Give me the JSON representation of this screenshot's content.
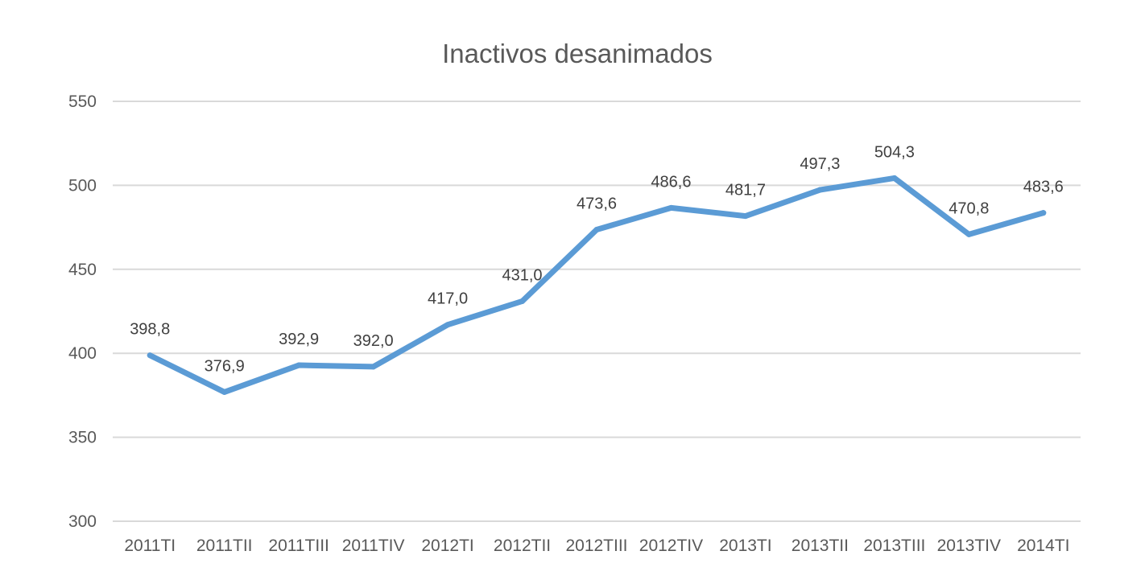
{
  "chart_data": {
    "type": "line",
    "title": "Inactivos desanimados",
    "xlabel": "",
    "ylabel": "",
    "categories": [
      "2011TI",
      "2011TII",
      "2011TIII",
      "2011TIV",
      "2012TI",
      "2012TII",
      "2012TIII",
      "2012TIV",
      "2013TI",
      "2013TII",
      "2013TIII",
      "2013TIV",
      "2014TI"
    ],
    "series": [
      {
        "values": [
          398.8,
          376.9,
          392.9,
          392.0,
          417.0,
          431.0,
          473.6,
          486.6,
          481.7,
          497.3,
          504.3,
          470.8,
          483.6
        ],
        "labels": [
          "398,8",
          "376,9",
          "392,9",
          "392,0",
          "417,0",
          "431,0",
          "473,6",
          "486,6",
          "481,7",
          "497,3",
          "504,3",
          "470,8",
          "483,6"
        ],
        "color": "#5b9bd5"
      }
    ],
    "ylim": [
      300,
      550
    ],
    "yticks": [
      300,
      350,
      400,
      450,
      500,
      550
    ],
    "ytick_labels": [
      "300",
      "350",
      "400",
      "450",
      "500",
      "550"
    ],
    "grid": true,
    "legend": "none",
    "data_labels": true
  }
}
